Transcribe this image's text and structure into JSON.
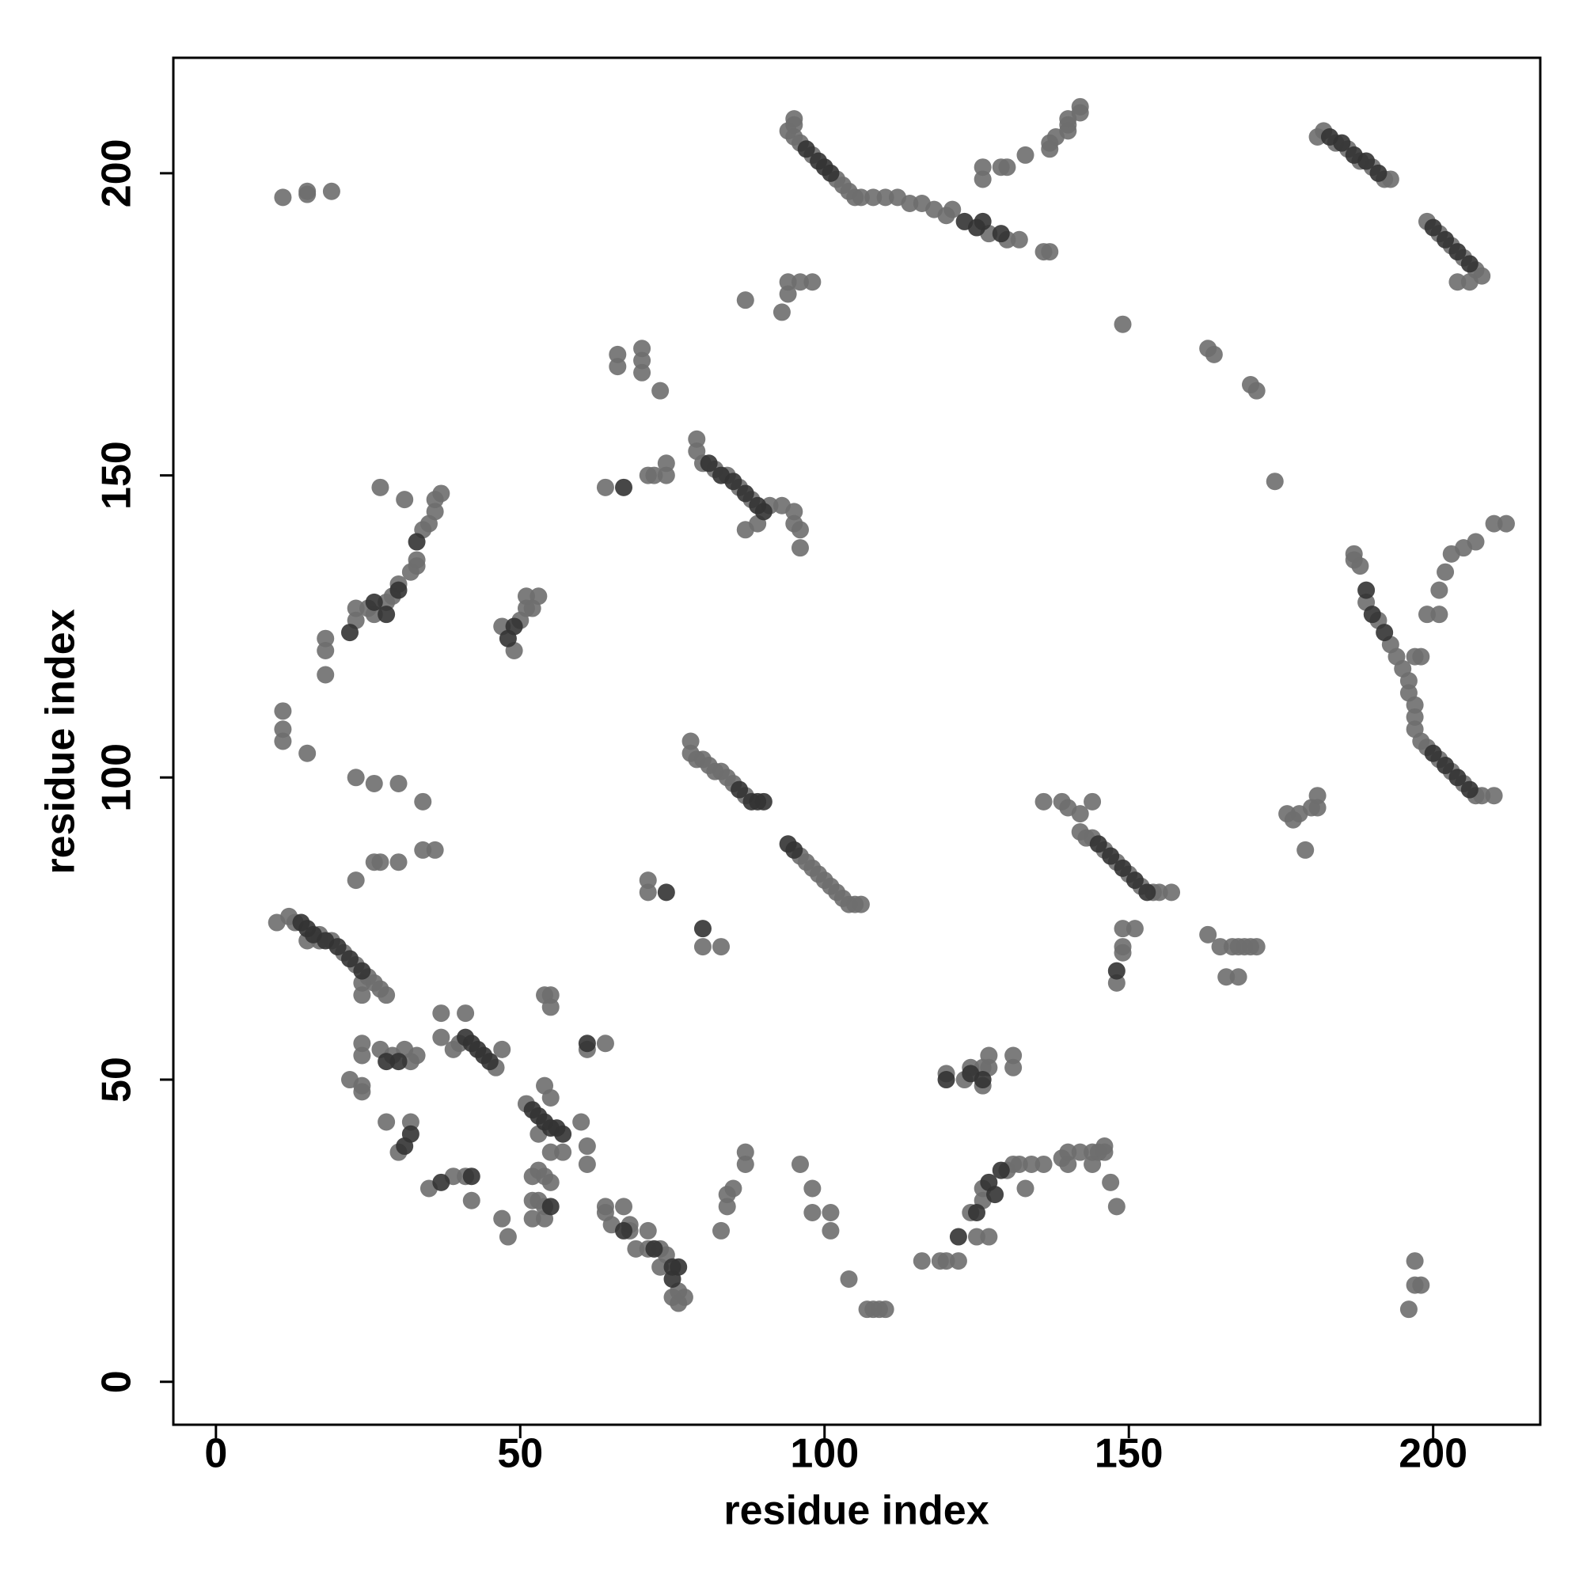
{
  "chart_data": {
    "type": "scatter",
    "xlabel": "residue index",
    "ylabel": "residue index",
    "xlim": [
      -7,
      217.6
    ],
    "ylim": [
      -7.1,
      219.1
    ],
    "xticks": [
      0,
      50,
      100,
      150,
      200
    ],
    "yticks": [
      0,
      50,
      100,
      150,
      200
    ],
    "grid": false,
    "series": [
      {
        "color": "#6e6e6e",
        "x": [
          11,
          15,
          15,
          19,
          94,
          95,
          96,
          98,
          102,
          103,
          104,
          105,
          106,
          108,
          110,
          112,
          114,
          116,
          118,
          95,
          95,
          120,
          121,
          127,
          130,
          132,
          136,
          137,
          126,
          126,
          129,
          130,
          133,
          137,
          137,
          138,
          140,
          140,
          140,
          142,
          142,
          181,
          182,
          184,
          186,
          188,
          190,
          192,
          193,
          199,
          201,
          203,
          205,
          207,
          208,
          204,
          206,
          87,
          93,
          94,
          94,
          96,
          98,
          149,
          163,
          164,
          170,
          171,
          174,
          66,
          66,
          70,
          70,
          70,
          73,
          79,
          79,
          80,
          82,
          84,
          86,
          88,
          91,
          93,
          89,
          87,
          95,
          95,
          96,
          96,
          64,
          71,
          72,
          74,
          74,
          78,
          78,
          79,
          80,
          81,
          82,
          83,
          84,
          85,
          87,
          96,
          97,
          98,
          99,
          100,
          101,
          102,
          103,
          104,
          105,
          106,
          71,
          71,
          80,
          83,
          139,
          140,
          142,
          142,
          143,
          144,
          146,
          148,
          150,
          152,
          154,
          155,
          157,
          144,
          149,
          151,
          149,
          149,
          148,
          136,
          163,
          165,
          167,
          168,
          169,
          170,
          171,
          166,
          168,
          176,
          178,
          180,
          181,
          181,
          179,
          177,
          187,
          187,
          188,
          189,
          191,
          193,
          194,
          195,
          196,
          196,
          197,
          197,
          197,
          198,
          199,
          201,
          203,
          205,
          207,
          208,
          210,
          199,
          201,
          201,
          202,
          203,
          205,
          207,
          210,
          212,
          197,
          198,
          27,
          31,
          36,
          37,
          36,
          35,
          34,
          33,
          33,
          32,
          30,
          29,
          28,
          25,
          23,
          23,
          26,
          18,
          18,
          18,
          11,
          11,
          11,
          15,
          47,
          49,
          50,
          51,
          51,
          52,
          53,
          23,
          26,
          30,
          34,
          26,
          27,
          30,
          34,
          36,
          23,
          10,
          12,
          13,
          17,
          19,
          21,
          23,
          25,
          26,
          27,
          28,
          24,
          24,
          15,
          17,
          24,
          24,
          27,
          29,
          31,
          32,
          33,
          37,
          37,
          39,
          40,
          46,
          47,
          41,
          22,
          24,
          24,
          28,
          30,
          32,
          35,
          39,
          41,
          42,
          47,
          48,
          51,
          55,
          54,
          54,
          55,
          55,
          60,
          53,
          55,
          57,
          61,
          52,
          53,
          54,
          55,
          52,
          53,
          54,
          52,
          54,
          61,
          64,
          61,
          64,
          64,
          65,
          67,
          68,
          68,
          69,
          71,
          71,
          73,
          73,
          74,
          76,
          76,
          77,
          75,
          83,
          84,
          84,
          85,
          87,
          87,
          96,
          98,
          98,
          101,
          101,
          104,
          107,
          108,
          109,
          110,
          116,
          119,
          120,
          122,
          124,
          126,
          126,
          130,
          131,
          132,
          133,
          134,
          136,
          139,
          140,
          140,
          142,
          144,
          145,
          146,
          146,
          144,
          147,
          148,
          125,
          127,
          120,
          123,
          124,
          126,
          126,
          127,
          127,
          131,
          131,
          196,
          197,
          197,
          198
        ],
        "values": [
          196,
          196.5,
          197,
          197,
          207,
          206,
          205,
          203,
          199,
          198,
          197,
          196,
          196,
          196,
          196,
          196,
          195,
          195,
          194,
          209,
          208,
          193,
          194,
          190,
          189,
          189,
          187,
          187,
          201,
          199,
          201,
          201,
          203,
          204,
          205,
          206,
          207,
          208,
          209,
          210,
          211,
          206,
          207,
          205,
          204,
          202,
          201,
          199,
          199,
          192,
          190,
          188,
          186,
          184,
          183,
          182,
          182,
          179,
          177,
          180,
          182,
          182,
          182,
          175,
          171,
          170,
          165,
          164,
          149,
          168,
          170,
          167,
          169,
          171,
          164,
          156,
          154,
          152,
          151,
          150,
          148,
          146,
          145,
          145,
          142,
          141,
          144,
          142,
          141,
          138,
          148,
          150,
          150,
          150,
          152,
          106,
          104,
          103,
          103,
          102,
          101,
          101,
          100,
          99,
          97,
          87,
          86,
          85,
          84,
          83,
          82,
          81,
          80,
          79,
          79,
          79,
          83,
          81,
          72,
          72,
          96,
          95,
          94,
          91,
          90,
          90,
          88,
          86,
          84,
          82,
          81,
          81,
          81,
          96,
          75,
          75,
          72,
          71,
          66,
          96,
          74,
          72,
          72,
          72,
          72,
          72,
          72,
          67,
          67,
          94,
          94,
          95,
          97,
          95,
          88,
          93,
          137,
          136,
          135,
          129,
          126,
          122,
          120,
          118,
          116,
          114,
          112,
          110,
          108,
          106,
          105,
          103,
          101,
          99,
          97,
          97,
          97,
          127,
          127,
          131,
          134,
          137,
          138,
          139,
          142,
          142,
          120,
          120,
          148,
          146,
          146,
          147,
          144,
          142,
          141,
          136,
          135,
          134,
          132,
          130,
          129,
          128,
          128,
          126,
          127,
          123,
          121,
          117,
          111,
          108,
          106,
          104,
          125,
          121,
          126,
          128,
          130,
          128,
          130,
          100,
          99,
          99,
          96,
          86,
          86,
          86,
          88,
          88,
          83,
          76,
          77,
          76,
          74,
          73,
          71,
          69,
          67,
          66,
          65,
          64,
          66,
          64,
          73,
          73,
          56,
          54,
          55,
          54,
          55,
          53,
          54,
          61,
          57,
          55,
          56,
          52,
          55,
          61,
          50,
          49,
          48,
          43,
          38,
          43,
          32,
          34,
          34,
          30,
          27,
          24,
          46,
          47,
          49,
          64,
          62,
          64,
          43,
          41,
          38,
          38,
          39,
          34,
          35,
          34,
          33,
          30,
          30,
          29,
          27,
          27,
          55,
          56,
          36,
          29,
          28,
          26,
          29,
          26,
          25,
          22,
          22,
          25,
          22,
          19,
          21,
          15,
          13,
          14,
          14,
          25,
          29,
          31,
          32,
          38,
          36,
          36,
          32,
          28,
          28,
          25,
          17,
          12,
          12,
          12,
          12,
          20,
          20,
          20,
          20,
          28,
          30,
          32,
          35,
          36,
          36,
          32,
          36,
          36,
          37,
          38,
          36,
          38,
          38,
          38,
          39,
          38,
          36,
          33,
          29,
          24,
          24,
          51,
          50,
          52,
          52,
          49,
          54,
          52,
          54,
          52,
          12,
          16,
          20,
          16
        ]
      },
      {
        "color": "#333333",
        "x": [
          97,
          99,
          100,
          101,
          123,
          125,
          126,
          129,
          183,
          185,
          187,
          189,
          191,
          200,
          202,
          204,
          206,
          67,
          81,
          83,
          85,
          87,
          89,
          90,
          86,
          88,
          89,
          90,
          94,
          95,
          74,
          80,
          145,
          147,
          149,
          151,
          153,
          148,
          189,
          190,
          192,
          200,
          202,
          204,
          206,
          33,
          30,
          26,
          28,
          22,
          49,
          48,
          14,
          15,
          16,
          18,
          20,
          22,
          24,
          28,
          30,
          41,
          42,
          43,
          44,
          45,
          32,
          31,
          37,
          42,
          52,
          53,
          54,
          55,
          56,
          57,
          55,
          61,
          67,
          72,
          75,
          76,
          75,
          125,
          127,
          128,
          129,
          122,
          120,
          124,
          126
        ],
        "values": [
          204,
          202,
          201,
          200,
          192,
          191,
          192,
          190,
          206,
          205,
          203,
          202,
          200,
          191,
          189,
          187,
          185,
          148,
          152,
          150,
          149,
          147,
          145,
          144,
          98,
          96,
          96,
          96,
          89,
          88,
          81,
          75,
          89,
          87,
          85,
          83,
          81,
          68,
          131,
          127,
          124,
          104,
          102,
          100,
          98,
          139,
          131,
          129,
          127,
          124,
          125,
          123,
          76,
          75,
          74,
          73,
          72,
          70,
          68,
          53,
          53,
          57,
          56,
          55,
          54,
          53,
          41,
          39,
          33,
          34,
          45,
          44,
          43,
          42,
          42,
          41,
          29,
          56,
          25,
          22,
          19,
          19,
          17,
          28,
          33,
          31,
          35,
          24,
          50,
          51,
          50
        ]
      }
    ]
  }
}
